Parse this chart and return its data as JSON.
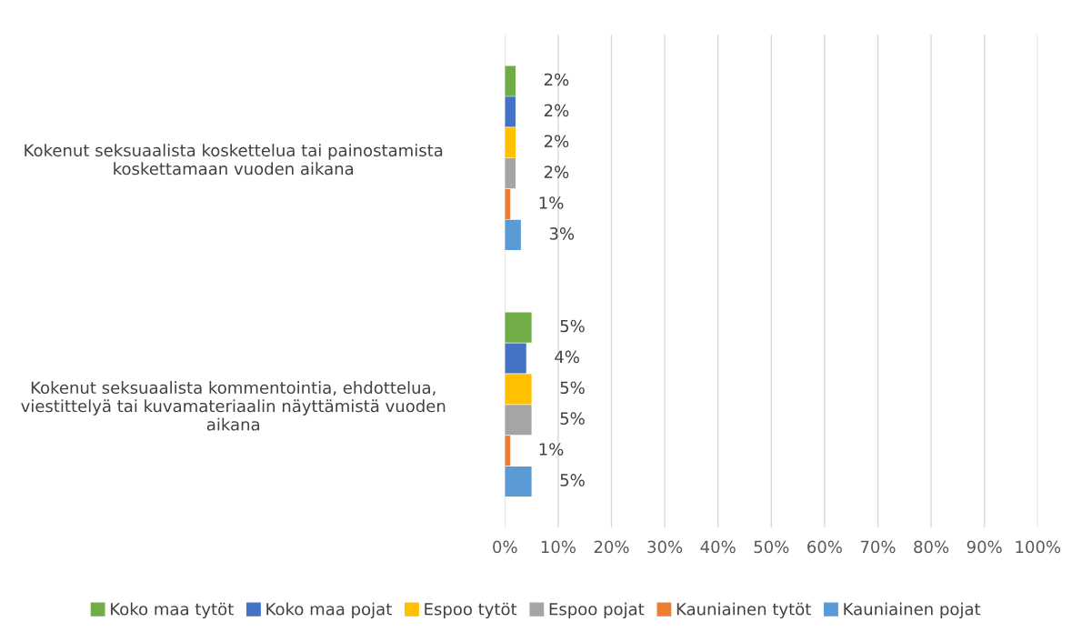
{
  "chart_data": {
    "type": "bar",
    "orientation": "horizontal",
    "categories": [
      "Kokenut seksuaalista koskettelua tai painostamista koskettamaan vuoden aikana",
      "Kokenut seksuaalista kommentointia, ehdottelua, viestittelyä tai kuvamateriaalin näyttämistä vuoden aikana"
    ],
    "series": [
      {
        "name": "Koko maa tytöt",
        "color": "#70ad47",
        "values": [
          2,
          5
        ],
        "value_labels": [
          "2%",
          "5%"
        ]
      },
      {
        "name": "Koko maa pojat",
        "color": "#4472c4",
        "values": [
          2,
          4
        ],
        "value_labels": [
          "2%",
          "4%"
        ]
      },
      {
        "name": "Espoo tytöt",
        "color": "#ffc000",
        "values": [
          2,
          5
        ],
        "value_labels": [
          "2%",
          "5%"
        ]
      },
      {
        "name": "Espoo pojat",
        "color": "#a5a5a5",
        "values": [
          2,
          5
        ],
        "value_labels": [
          "2%",
          "5%"
        ]
      },
      {
        "name": "Kauniainen tytöt",
        "color": "#ed7d31",
        "values": [
          1,
          1
        ],
        "value_labels": [
          "1%",
          "1%"
        ]
      },
      {
        "name": "Kauniainen pojat",
        "color": "#5b9bd5",
        "values": [
          3,
          5
        ],
        "value_labels": [
          "3%",
          "5%"
        ]
      }
    ],
    "xlim": [
      0,
      100
    ],
    "xticks": [
      {
        "value": 0,
        "label": "0%"
      },
      {
        "value": 10,
        "label": "10%"
      },
      {
        "value": 20,
        "label": "20%"
      },
      {
        "value": 30,
        "label": "30%"
      },
      {
        "value": 40,
        "label": "40%"
      },
      {
        "value": 50,
        "label": "50%"
      },
      {
        "value": 60,
        "label": "60%"
      },
      {
        "value": 70,
        "label": "70%"
      },
      {
        "value": 80,
        "label": "80%"
      },
      {
        "value": 90,
        "label": "90%"
      },
      {
        "value": 100,
        "label": "100%"
      }
    ],
    "grid": "x",
    "legend": "bottom"
  }
}
